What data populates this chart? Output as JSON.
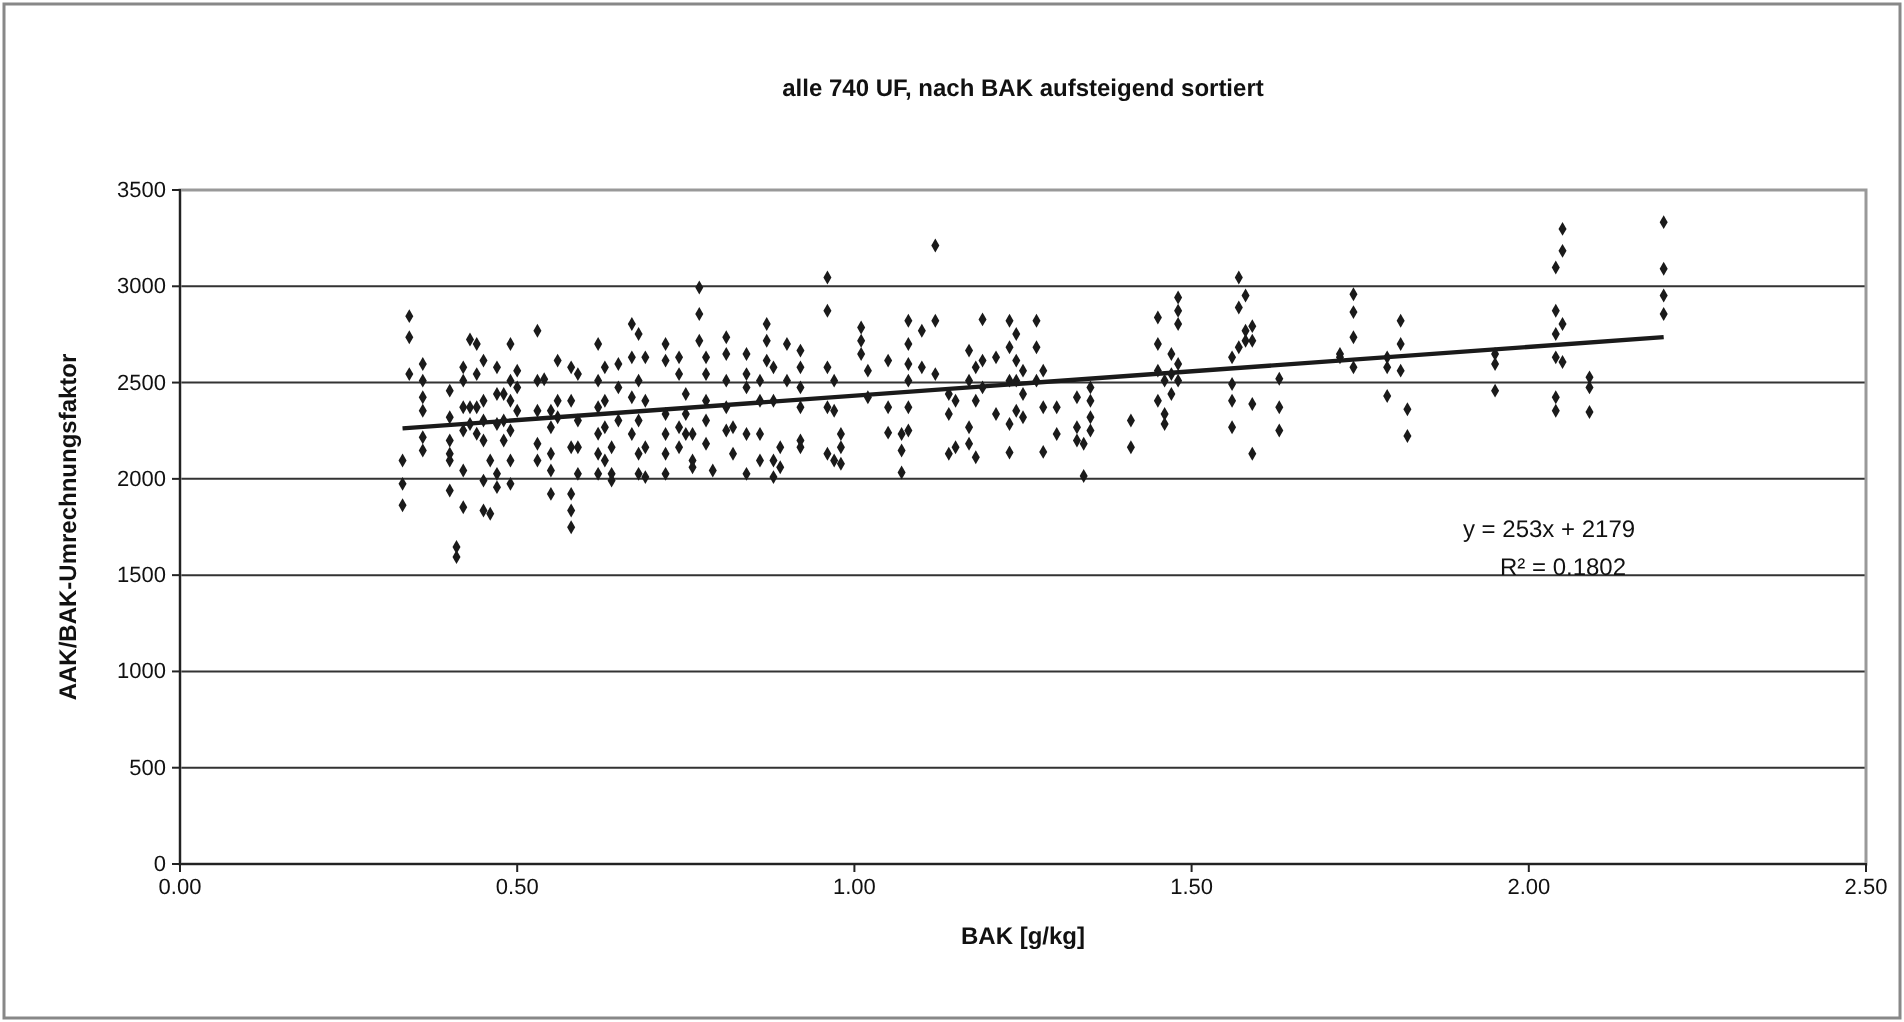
{
  "chart_data": {
    "type": "scatter",
    "title": "alle 740 UF, nach BAK aufsteigend sortiert",
    "xlabel": "BAK [g/kg]",
    "ylabel": "AAK/BAK-Umrechnungsfaktor",
    "xlim": [
      0,
      2.5
    ],
    "xticks": [
      {
        "value": 0,
        "label": "0.00"
      },
      {
        "value": 0.5,
        "label": "0.50"
      },
      {
        "value": 1,
        "label": "1.00"
      },
      {
        "value": 1.5,
        "label": "1.50"
      },
      {
        "value": 2,
        "label": "2.00"
      },
      {
        "value": 2.5,
        "label": "2.50"
      }
    ],
    "ylim": [
      0,
      3500
    ],
    "yticks": [
      0,
      500,
      1000,
      1500,
      2000,
      2500,
      3000,
      3500
    ],
    "grid": "y",
    "marker": "diamond",
    "annotations": [
      "y = 253x + 2179",
      "R² = 0.1802"
    ],
    "series": [
      {
        "color": "#1a1a1a",
        "x": [
          0.33,
          0.33,
          0.33,
          0.34,
          0.34,
          0.34,
          0.36,
          0.36,
          0.36,
          0.36,
          0.36,
          0.36,
          0.4,
          0.4,
          0.4,
          0.4,
          0.4,
          0.4,
          0.41,
          0.41,
          0.42,
          0.42,
          0.42,
          0.42,
          0.42,
          0.42,
          0.43,
          0.43,
          0.43,
          0.44,
          0.44,
          0.44,
          0.44,
          0.45,
          0.45,
          0.45,
          0.45,
          0.45,
          0.45,
          0.46,
          0.46,
          0.47,
          0.47,
          0.47,
          0.47,
          0.47,
          0.48,
          0.48,
          0.48,
          0.49,
          0.49,
          0.49,
          0.49,
          0.49,
          0.49,
          0.5,
          0.5,
          0.5,
          0.53,
          0.53,
          0.53,
          0.53,
          0.53,
          0.54,
          0.55,
          0.55,
          0.55,
          0.55,
          0.55,
          0.56,
          0.56,
          0.56,
          0.58,
          0.58,
          0.58,
          0.58,
          0.58,
          0.58,
          0.59,
          0.59,
          0.59,
          0.59,
          0.62,
          0.62,
          0.62,
          0.62,
          0.62,
          0.62,
          0.63,
          0.63,
          0.63,
          0.63,
          0.64,
          0.64,
          0.64,
          0.65,
          0.65,
          0.65,
          0.67,
          0.67,
          0.67,
          0.67,
          0.68,
          0.68,
          0.68,
          0.68,
          0.68,
          0.69,
          0.69,
          0.69,
          0.69,
          0.72,
          0.72,
          0.72,
          0.72,
          0.72,
          0.72,
          0.74,
          0.74,
          0.74,
          0.74,
          0.75,
          0.75,
          0.75,
          0.76,
          0.76,
          0.76,
          0.77,
          0.77,
          0.77,
          0.78,
          0.78,
          0.78,
          0.78,
          0.78,
          0.79,
          0.81,
          0.81,
          0.81,
          0.81,
          0.81,
          0.82,
          0.82,
          0.84,
          0.84,
          0.84,
          0.84,
          0.84,
          0.86,
          0.86,
          0.86,
          0.86,
          0.87,
          0.87,
          0.87,
          0.88,
          0.88,
          0.88,
          0.88,
          0.89,
          0.89,
          0.9,
          0.9,
          0.92,
          0.92,
          0.92,
          0.92,
          0.92,
          0.92,
          0.96,
          0.96,
          0.96,
          0.96,
          0.96,
          0.97,
          0.97,
          0.97,
          0.98,
          0.98,
          0.98,
          1.01,
          1.01,
          1.01,
          1.02,
          1.02,
          1.05,
          1.05,
          1.05,
          1.07,
          1.07,
          1.07,
          1.08,
          1.08,
          1.08,
          1.08,
          1.08,
          1.08,
          1.1,
          1.1,
          1.12,
          1.12,
          1.12,
          1.14,
          1.14,
          1.14,
          1.15,
          1.15,
          1.17,
          1.17,
          1.17,
          1.17,
          1.18,
          1.18,
          1.18,
          1.19,
          1.19,
          1.19,
          1.21,
          1.21,
          1.23,
          1.23,
          1.23,
          1.23,
          1.23,
          1.24,
          1.24,
          1.24,
          1.24,
          1.25,
          1.25,
          1.25,
          1.27,
          1.27,
          1.27,
          1.28,
          1.28,
          1.28,
          1.3,
          1.3,
          1.33,
          1.33,
          1.33,
          1.34,
          1.34,
          1.35,
          1.35,
          1.35,
          1.35,
          1.41,
          1.41,
          1.45,
          1.45,
          1.45,
          1.45,
          1.46,
          1.46,
          1.46,
          1.47,
          1.47,
          1.47,
          1.48,
          1.48,
          1.48,
          1.48,
          1.48,
          1.56,
          1.56,
          1.56,
          1.56,
          1.57,
          1.57,
          1.57,
          1.58,
          1.58,
          1.58,
          1.59,
          1.59,
          1.59,
          1.59,
          1.63,
          1.63,
          1.63,
          1.72,
          1.72,
          1.74,
          1.74,
          1.74,
          1.74,
          1.79,
          1.79,
          1.79,
          1.81,
          1.81,
          1.81,
          1.82,
          1.82,
          1.95,
          1.95,
          1.95,
          2.04,
          2.04,
          2.04,
          2.04,
          2.04,
          2.04,
          2.05,
          2.05,
          2.05,
          2.05,
          2.09,
          2.09,
          2.09,
          2.2,
          2.2,
          2.2,
          2.2
        ],
        "values": [
          2095,
          1974,
          1863,
          2845,
          2735,
          2544,
          2596,
          2510,
          2424,
          2354,
          2216,
          2147,
          2458,
          2320,
          2199,
          2130,
          2095,
          1940,
          1646,
          1594,
          2579,
          2510,
          2372,
          2251,
          2043,
          1853,
          2724,
          2372,
          2285,
          2700,
          2544,
          2372,
          2234,
          2614,
          2406,
          2303,
          2199,
          1991,
          1836,
          1819,
          2095,
          2579,
          2441,
          2285,
          2026,
          1957,
          2441,
          2303,
          2199,
          2700,
          2510,
          2406,
          2251,
          2095,
          1974,
          2562,
          2475,
          2354,
          2769,
          2510,
          2354,
          2182,
          2095,
          2517,
          2354,
          2268,
          2130,
          2043,
          1922,
          2614,
          2406,
          2320,
          2579,
          2406,
          2164,
          1922,
          1836,
          1749,
          2544,
          2303,
          2164,
          2026,
          2700,
          2510,
          2372,
          2234,
          2130,
          2026,
          2579,
          2406,
          2268,
          2095,
          2164,
          2026,
          1991,
          2596,
          2475,
          2303,
          2804,
          2631,
          2424,
          2233,
          2752,
          2510,
          2303,
          2130,
          2026,
          2631,
          2406,
          2164,
          2009,
          2700,
          2614,
          2337,
          2233,
          2130,
          2026,
          2631,
          2544,
          2268,
          2164,
          2441,
          2337,
          2233,
          2233,
          2095,
          2060,
          2994,
          2856,
          2717,
          2631,
          2544,
          2406,
          2303,
          2182,
          2043,
          2735,
          2648,
          2510,
          2372,
          2251,
          2268,
          2130,
          2648,
          2544,
          2475,
          2233,
          2026,
          2510,
          2406,
          2233,
          2095,
          2804,
          2717,
          2614,
          2579,
          2406,
          2095,
          2009,
          2164,
          2060,
          2700,
          2510,
          2666,
          2579,
          2475,
          2372,
          2199,
          2164,
          3046,
          2873,
          2579,
          2372,
          2130,
          2510,
          2354,
          2095,
          2233,
          2164,
          2078,
          2786,
          2717,
          2648,
          2562,
          2424,
          2614,
          2372,
          2240,
          2233,
          2147,
          2033,
          2821,
          2700,
          2596,
          2510,
          2372,
          2251,
          2769,
          2579,
          3212,
          2821,
          2544,
          2441,
          2337,
          2130,
          2406,
          2164,
          2666,
          2510,
          2268,
          2182,
          2579,
          2406,
          2112,
          2828,
          2614,
          2475,
          2631,
          2337,
          2821,
          2683,
          2510,
          2285,
          2137,
          2752,
          2614,
          2510,
          2354,
          2562,
          2441,
          2320,
          2821,
          2683,
          2510,
          2562,
          2372,
          2140,
          2372,
          2233,
          2424,
          2268,
          2199,
          2182,
          2015,
          2475,
          2406,
          2320,
          2251,
          2303,
          2164,
          2838,
          2700,
          2562,
          2406,
          2510,
          2337,
          2285,
          2648,
          2544,
          2441,
          2942,
          2873,
          2804,
          2596,
          2510,
          2631,
          2493,
          2406,
          2268,
          3046,
          2890,
          2683,
          2952,
          2769,
          2717,
          2793,
          2717,
          2389,
          2130,
          2520,
          2372,
          2251,
          2648,
          2631,
          2959,
          2866,
          2735,
          2579,
          2631,
          2579,
          2430,
          2821,
          2700,
          2562,
          2361,
          2223,
          2648,
          2596,
          2458,
          3098,
          2873,
          2752,
          2631,
          2424,
          2354,
          3298,
          3184,
          2804,
          2607,
          2527,
          2475,
          2347,
          3333,
          3091,
          2952,
          2856
        ]
      },
      {
        "type": "line",
        "color": "#1a1a1a",
        "marker": "none",
        "line_style": "solid",
        "x": [
          0.33,
          2.2
        ],
        "values": [
          2262,
          2736
        ]
      }
    ]
  }
}
